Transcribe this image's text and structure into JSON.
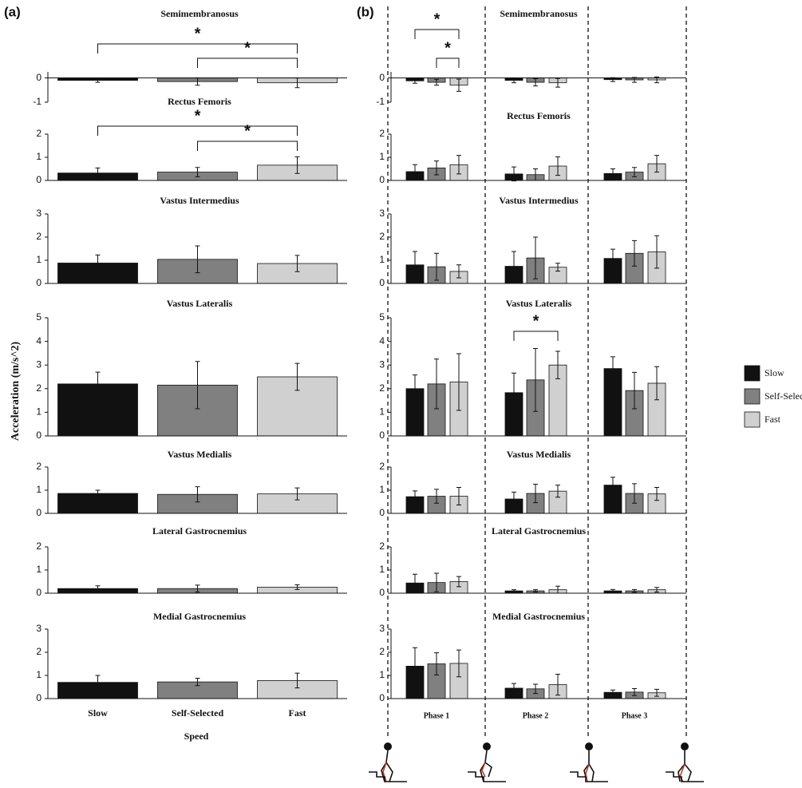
{
  "panel_labels": [
    "(a)",
    "(b)"
  ],
  "ylabel": "Acceleration (m/s^2)",
  "chart_data": [
    {
      "type": "bar",
      "title": "Semimembranosus",
      "categories": [
        null,
        null,
        null
      ],
      "values": [
        -0.1,
        -0.15,
        -0.2
      ],
      "errors": [
        0.08,
        0.15,
        0.2
      ],
      "colors": [
        "#111111",
        "#808080",
        "#d0d0d0"
      ],
      "ylim": [
        -1,
        0.25
      ],
      "yticks": [
        0,
        -1
      ],
      "significance": [
        {
          "label": "*",
          "groups": [
            "Self-Selected",
            "Fast"
          ]
        },
        {
          "label": "*",
          "groups": [
            "Slow",
            "Fast"
          ]
        }
      ]
    },
    {
      "type": "bar",
      "title": "Rectus Femoris",
      "categories": [
        null,
        null,
        null
      ],
      "values": [
        0.32,
        0.36,
        0.66
      ],
      "errors": [
        0.22,
        0.2,
        0.36
      ],
      "colors": [
        "#111111",
        "#808080",
        "#d0d0d0"
      ],
      "ylim": [
        0,
        2
      ],
      "yticks": [
        0,
        1,
        2
      ],
      "significance": [
        {
          "label": "*",
          "groups": [
            "Self-Selected",
            "Fast"
          ]
        },
        {
          "label": "*",
          "groups": [
            "Slow",
            "Fast"
          ]
        }
      ]
    },
    {
      "type": "bar",
      "title": "Vastus Intermedius",
      "categories": [
        null,
        null,
        null
      ],
      "values": [
        0.88,
        1.04,
        0.86
      ],
      "errors": [
        0.35,
        0.58,
        0.35
      ],
      "colors": [
        "#111111",
        "#808080",
        "#d0d0d0"
      ],
      "ylim": [
        0,
        3
      ],
      "yticks": [
        0,
        1,
        2,
        3
      ]
    },
    {
      "type": "bar",
      "title": "Vastus Lateralis",
      "categories": [
        null,
        null,
        null
      ],
      "values": [
        2.2,
        2.15,
        2.5
      ],
      "errors": [
        0.5,
        1.0,
        0.57
      ],
      "colors": [
        "#111111",
        "#808080",
        "#d0d0d0"
      ],
      "ylim": [
        0,
        5
      ],
      "yticks": [
        0,
        1,
        2,
        3,
        4,
        5
      ]
    },
    {
      "type": "bar",
      "title": "Vastus Medialis",
      "categories": [
        null,
        null,
        null
      ],
      "values": [
        0.86,
        0.82,
        0.84
      ],
      "errors": [
        0.14,
        0.33,
        0.26
      ],
      "colors": [
        "#111111",
        "#808080",
        "#d0d0d0"
      ],
      "ylim": [
        0,
        2
      ],
      "yticks": [
        0,
        1,
        2
      ]
    },
    {
      "type": "bar",
      "title": "Lateral Gastrocnemius",
      "categories": [
        null,
        null,
        null
      ],
      "values": [
        0.2,
        0.2,
        0.26
      ],
      "errors": [
        0.12,
        0.15,
        0.1
      ],
      "colors": [
        "#111111",
        "#808080",
        "#d0d0d0"
      ],
      "ylim": [
        0,
        2
      ],
      "yticks": [
        0,
        1,
        2
      ]
    },
    {
      "type": "bar",
      "title": "Medial Gastrocnemius",
      "categories": [
        "Slow",
        "Self-Selected",
        "Fast"
      ],
      "xlabel": "Speed",
      "values": [
        0.7,
        0.72,
        0.78
      ],
      "errors": [
        0.3,
        0.16,
        0.32
      ],
      "colors": [
        "#111111",
        "#808080",
        "#d0d0d0"
      ],
      "ylim": [
        0,
        3
      ],
      "yticks": [
        0,
        1,
        2,
        3
      ]
    },
    {
      "type": "grouped_bar",
      "title": "Semimembranosus",
      "categories": [
        null,
        null,
        null
      ],
      "ylim": [
        -1,
        0.25
      ],
      "yticks": [
        0,
        -1
      ],
      "series": [
        {
          "name": "Slow",
          "color": "#111111",
          "values": [
            -0.12,
            -0.1,
            -0.07
          ],
          "errors": [
            0.1,
            0.1,
            0.08
          ]
        },
        {
          "name": "Self-Selected",
          "color": "#808080",
          "values": [
            -0.18,
            -0.18,
            -0.08
          ],
          "errors": [
            0.12,
            0.15,
            0.1
          ]
        },
        {
          "name": "Fast",
          "color": "#d0d0d0",
          "values": [
            -0.3,
            -0.2,
            -0.08
          ],
          "errors": [
            0.25,
            0.18,
            0.12
          ]
        }
      ],
      "significance": [
        {
          "label": "*",
          "category": "Phase 1",
          "groups": [
            "Self-Selected",
            "Fast"
          ]
        },
        {
          "label": "*",
          "category": "Phase 1",
          "groups": [
            "Slow",
            "Fast"
          ]
        }
      ]
    },
    {
      "type": "grouped_bar",
      "title": "Rectus Femoris",
      "categories": [
        null,
        null,
        null
      ],
      "ylim": [
        0,
        2
      ],
      "yticks": [
        0,
        1,
        2
      ],
      "series": [
        {
          "name": "Slow",
          "color": "#111111",
          "values": [
            0.38,
            0.28,
            0.3
          ],
          "errors": [
            0.3,
            0.3,
            0.2
          ]
        },
        {
          "name": "Self-Selected",
          "color": "#808080",
          "values": [
            0.54,
            0.25,
            0.36
          ],
          "errors": [
            0.3,
            0.25,
            0.2
          ]
        },
        {
          "name": "Fast",
          "color": "#d0d0d0",
          "values": [
            0.68,
            0.62,
            0.72
          ],
          "errors": [
            0.4,
            0.4,
            0.36
          ]
        }
      ]
    },
    {
      "type": "grouped_bar",
      "title": "Vastus Intermedius",
      "categories": [
        null,
        null,
        null
      ],
      "ylim": [
        0,
        3
      ],
      "yticks": [
        0,
        1,
        2,
        3
      ],
      "series": [
        {
          "name": "Slow",
          "color": "#111111",
          "values": [
            0.8,
            0.74,
            1.08
          ],
          "errors": [
            0.58,
            0.64,
            0.4
          ]
        },
        {
          "name": "Self-Selected",
          "color": "#808080",
          "values": [
            0.72,
            1.1,
            1.3
          ],
          "errors": [
            0.58,
            0.9,
            0.55
          ]
        },
        {
          "name": "Fast",
          "color": "#d0d0d0",
          "values": [
            0.52,
            0.7,
            1.36
          ],
          "errors": [
            0.28,
            0.17,
            0.7
          ]
        }
      ]
    },
    {
      "type": "grouped_bar",
      "title": "Vastus Lateralis",
      "categories": [
        null,
        null,
        null
      ],
      "ylim": [
        0,
        5
      ],
      "yticks": [
        0,
        1,
        2,
        3,
        4,
        5
      ],
      "series": [
        {
          "name": "Slow",
          "color": "#111111",
          "values": [
            2.0,
            1.83,
            2.85
          ],
          "errors": [
            0.58,
            0.83,
            0.5
          ]
        },
        {
          "name": "Self-Selected",
          "color": "#808080",
          "values": [
            2.2,
            2.37,
            1.92
          ],
          "errors": [
            1.05,
            1.33,
            0.77
          ]
        },
        {
          "name": "Fast",
          "color": "#d0d0d0",
          "values": [
            2.28,
            3.0,
            2.23
          ],
          "errors": [
            1.2,
            0.58,
            0.7
          ]
        }
      ],
      "significance": [
        {
          "label": "*",
          "category": "Phase 2",
          "groups": [
            "Slow",
            "Fast"
          ]
        }
      ]
    },
    {
      "type": "grouped_bar",
      "title": "Vastus Medialis",
      "categories": [
        null,
        null,
        null
      ],
      "ylim": [
        0,
        2
      ],
      "yticks": [
        0,
        1,
        2
      ],
      "series": [
        {
          "name": "Slow",
          "color": "#111111",
          "values": [
            0.72,
            0.62,
            1.22
          ],
          "errors": [
            0.25,
            0.3,
            0.34
          ]
        },
        {
          "name": "Self-Selected",
          "color": "#808080",
          "values": [
            0.74,
            0.86,
            0.86
          ],
          "errors": [
            0.3,
            0.4,
            0.42
          ]
        },
        {
          "name": "Fast",
          "color": "#d0d0d0",
          "values": [
            0.74,
            0.96,
            0.84
          ],
          "errors": [
            0.38,
            0.26,
            0.28
          ]
        }
      ]
    },
    {
      "type": "grouped_bar",
      "title": "Lateral Gastrocnemius",
      "categories": [
        null,
        null,
        null
      ],
      "ylim": [
        0,
        2
      ],
      "yticks": [
        0,
        1,
        2
      ],
      "series": [
        {
          "name": "Slow",
          "color": "#111111",
          "values": [
            0.44,
            0.1,
            0.1
          ],
          "errors": [
            0.38,
            0.05,
            0.06
          ]
        },
        {
          "name": "Self-Selected",
          "color": "#808080",
          "values": [
            0.46,
            0.1,
            0.1
          ],
          "errors": [
            0.4,
            0.05,
            0.06
          ]
        },
        {
          "name": "Fast",
          "color": "#d0d0d0",
          "values": [
            0.5,
            0.15,
            0.15
          ],
          "errors": [
            0.22,
            0.15,
            0.1
          ]
        }
      ]
    },
    {
      "type": "grouped_bar",
      "title": "Medial Gastrocnemius",
      "categories": [
        "Phase 1",
        "Phase 2",
        "Phase 3"
      ],
      "ylim": [
        0,
        3
      ],
      "yticks": [
        0,
        1,
        2,
        3
      ],
      "series": [
        {
          "name": "Slow",
          "color": "#111111",
          "values": [
            1.4,
            0.45,
            0.27
          ],
          "errors": [
            0.8,
            0.2,
            0.1
          ]
        },
        {
          "name": "Self-Selected",
          "color": "#808080",
          "values": [
            1.5,
            0.42,
            0.28
          ],
          "errors": [
            0.48,
            0.2,
            0.15
          ]
        },
        {
          "name": "Fast",
          "color": "#d0d0d0",
          "values": [
            1.52,
            0.6,
            0.25
          ],
          "errors": [
            0.58,
            0.45,
            0.15
          ]
        }
      ]
    }
  ]
}
